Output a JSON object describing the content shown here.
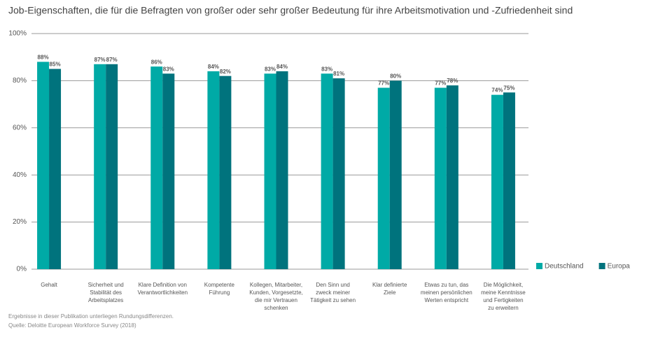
{
  "chart_data": {
    "type": "bar",
    "title": "Job-Eigenschaften, die für die Befragten von großer oder sehr großer Bedeutung für ihre Arbeitsmotivation und -Zufriedenheit sind",
    "categories": [
      "Gehalt",
      "Sicherheit und\nStabilität des\nArbeitsplatzes",
      "Klare Definition von\nVerantwortlichkeiten",
      "Kompetente\nFührung",
      "Kollegen, Mitarbeiter,\nKunden, Vorgesetzte,\ndie mir Vertrauen\nschenken",
      "Den Sinn und\nzweck meiner\nTätigkeit zu sehen",
      "Klar definierte\nZiele",
      "Etwas zu tun, das\nmeinen persönlichen\nWerten entspricht",
      "Die Möglichkeit,\nmeine Kenntnisse\nund Fertigkeiten\nzu erweitern"
    ],
    "series": [
      {
        "name": "Deutschland",
        "color": "#00aaa6",
        "values": [
          88,
          87,
          86,
          84,
          83,
          83,
          77,
          77,
          74
        ],
        "value_labels": [
          "88%",
          "87%",
          "86%",
          "84%",
          "83%",
          "83%",
          "77%",
          "77%",
          "74%"
        ]
      },
      {
        "name": "Europa",
        "color": "#00737d",
        "values": [
          85,
          87,
          83,
          82,
          84,
          81,
          80,
          78,
          75
        ],
        "value_labels": [
          "85%",
          "87%",
          "83%",
          "82%",
          "84%",
          "81%",
          "80%",
          "78%",
          "75%"
        ]
      }
    ],
    "ylim": [
      0,
      100
    ],
    "yticks": [
      {
        "value": 0,
        "label": "0%"
      },
      {
        "value": 20,
        "label": "20%"
      },
      {
        "value": 40,
        "label": "40%"
      },
      {
        "value": 60,
        "label": "60%"
      },
      {
        "value": 80,
        "label": "80%"
      },
      {
        "value": 100,
        "label": "100%"
      }
    ],
    "grid": true,
    "legend": "right",
    "notes": [
      "Ergebnisse in dieser Publikation unterliegen Rundungsdifferenzen.",
      "Quelle: Deloitte European Workforce Survey (2018)"
    ]
  }
}
